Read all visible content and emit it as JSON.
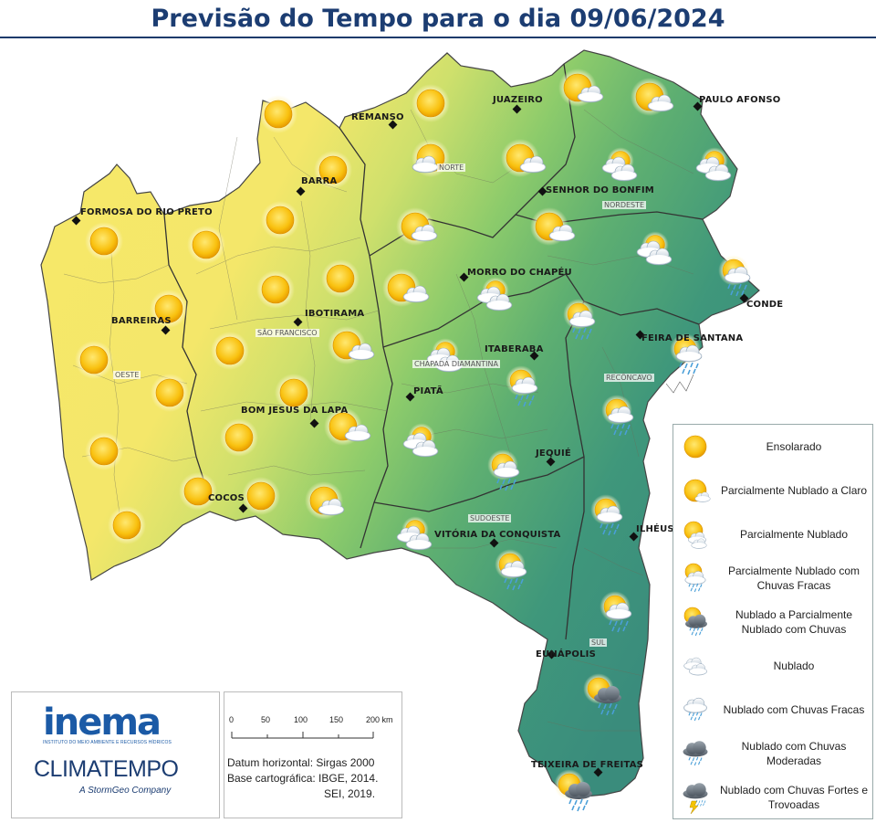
{
  "title": "Previsão do Tempo para o dia 09/06/2024",
  "colors": {
    "yellow": "#f7e868",
    "green_light": "#b9db6c",
    "green_mid": "#7cc36a",
    "green_dark": "#3f977b",
    "title": "#1c3d72",
    "brand": "#1b5aa6"
  },
  "cities": [
    {
      "name": "REMANSO"
    },
    {
      "name": "JUAZEIRO"
    },
    {
      "name": "PAULO AFONSO"
    },
    {
      "name": "BARRA"
    },
    {
      "name": "FORMOSA DO RIO PRETO"
    },
    {
      "name": "SENHOR DO BONFIM"
    },
    {
      "name": "MORRO DO CHAPÉU"
    },
    {
      "name": "IBOTIRAMA"
    },
    {
      "name": "BARREIRAS"
    },
    {
      "name": "CONDE"
    },
    {
      "name": "FEIRA DE SANTANA"
    },
    {
      "name": "ITABERABA"
    },
    {
      "name": "PIATÃ"
    },
    {
      "name": "BOM JESUS DA LAPA"
    },
    {
      "name": "JEQUIÉ"
    },
    {
      "name": "COCOS"
    },
    {
      "name": "VITÓRIA DA CONQUISTA"
    },
    {
      "name": "ILHÉUS"
    },
    {
      "name": "EUNÁPOLIS"
    },
    {
      "name": "TEIXEIRA DE FREITAS"
    }
  ],
  "regions": [
    "NORTE",
    "NORDESTE",
    "SÃO FRANCISCO",
    "OESTE",
    "CHAPADA DIAMANTINA",
    "RECÔNCAVO",
    "SUDOESTE",
    "SUL"
  ],
  "legend": [
    {
      "label": "Ensolarado",
      "icon": "sun-icon"
    },
    {
      "label": "Parcialmente Nublado a Claro",
      "icon": "sun-small-cloud-icon"
    },
    {
      "label": "Parcialmente Nublado",
      "icon": "sun-cloud-icon"
    },
    {
      "label": "Parcialmente Nublado com Chuvas Fracas",
      "icon": "sun-cloud-light-rain-icon"
    },
    {
      "label": "Nublado a Parcialmente Nublado com Chuvas",
      "icon": "sun-dark-cloud-rain-icon"
    },
    {
      "label": "Nublado",
      "icon": "cloud-icon"
    },
    {
      "label": "Nublado com Chuvas Fracas",
      "icon": "cloud-light-rain-icon"
    },
    {
      "label": "Nublado com Chuvas Moderadas",
      "icon": "dark-cloud-rain-icon"
    },
    {
      "label": "Nublado com Chuvas Fortes e Trovoadas",
      "icon": "storm-icon"
    }
  ],
  "logos": {
    "inema": "inema",
    "inema_sub": "INSTITUTO DO MEIO AMBIENTE E RECURSOS HÍDRICOS",
    "climatempo": "CLIMATEMPO",
    "stormgeo": "A StormGeo Company"
  },
  "scale": {
    "ticks": [
      "0",
      "50",
      "100",
      "150",
      "200 km"
    ]
  },
  "credits": {
    "line1": "Datum horizontal: Sirgas 2000",
    "line2": "Base cartográfica: IBGE, 2014.",
    "line3": "SEI, 2019."
  }
}
